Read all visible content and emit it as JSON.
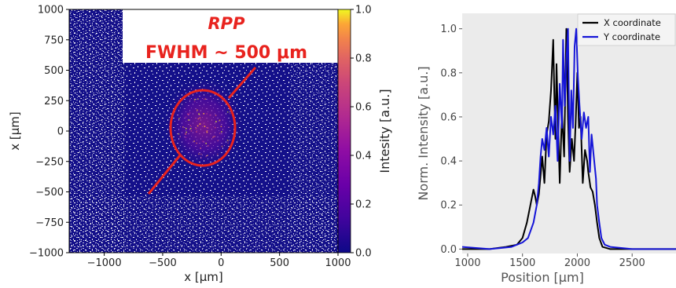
{
  "chart_data": [
    {
      "type": "heatmap",
      "panel": "left",
      "xlabel": "x [μm]",
      "ylabel": "x [μm]",
      "xlim": [
        -1300,
        1000
      ],
      "ylim": [
        -1000,
        1000
      ],
      "x_ticks": [
        -1000,
        -500,
        0,
        500,
        1000
      ],
      "x_tick_labels": [
        "−1000",
        "−500",
        "0",
        "500",
        "1000"
      ],
      "y_ticks": [
        1000,
        750,
        500,
        250,
        0,
        -250,
        -500,
        -750,
        -1000
      ],
      "y_tick_labels": [
        "1000",
        "750",
        "500",
        "250",
        "0",
        "−250",
        "−500",
        "−750",
        "−1000"
      ],
      "colorbar": {
        "label": "Intesity [a.u.]",
        "range": [
          0.0,
          1.0
        ],
        "ticks": [
          0.0,
          0.2,
          0.4,
          0.6,
          0.8,
          1.0
        ],
        "tick_labels": [
          "0.0",
          "0.2",
          "0.4",
          "0.6",
          "0.8",
          "1.0"
        ],
        "colormap": "plasma"
      },
      "annotations": {
        "title": "RPP",
        "subtitle": "FWHM ~ 500 μm",
        "annotation_color": "#e8231e"
      },
      "spot": {
        "center_x": -150,
        "center_y": 50,
        "width": 500,
        "height": 600,
        "peak": 0.6
      }
    },
    {
      "type": "line",
      "panel": "right",
      "xlabel": "Position [μm]",
      "ylabel": "Norm. Intensity [a.u.]",
      "xlim": [
        950,
        2900
      ],
      "ylim": [
        -0.02,
        1.07
      ],
      "x_ticks": [
        1000,
        1500,
        2000,
        2500
      ],
      "y_ticks": [
        0.0,
        0.2,
        0.4,
        0.6,
        0.8,
        1.0
      ],
      "y_tick_labels": [
        "0.0",
        "0.2",
        "0.4",
        "0.6",
        "0.8",
        "1.0"
      ],
      "background": "#ebebeb",
      "legend_position": "top-right",
      "series": [
        {
          "name": "X coordinate",
          "color": "#000000",
          "points": [
            [
              950,
              0.0
            ],
            [
              1200,
              0.0
            ],
            [
              1350,
              0.01
            ],
            [
              1450,
              0.02
            ],
            [
              1500,
              0.05
            ],
            [
              1540,
              0.12
            ],
            [
              1580,
              0.22
            ],
            [
              1600,
              0.27
            ],
            [
              1615,
              0.24
            ],
            [
              1630,
              0.2
            ],
            [
              1650,
              0.25
            ],
            [
              1680,
              0.42
            ],
            [
              1700,
              0.3
            ],
            [
              1720,
              0.52
            ],
            [
              1740,
              0.58
            ],
            [
              1760,
              0.72
            ],
            [
              1780,
              0.95
            ],
            [
              1790,
              0.7
            ],
            [
              1800,
              0.5
            ],
            [
              1810,
              0.84
            ],
            [
              1825,
              0.55
            ],
            [
              1840,
              0.3
            ],
            [
              1860,
              0.62
            ],
            [
              1880,
              0.42
            ],
            [
              1900,
              1.0
            ],
            [
              1915,
              0.6
            ],
            [
              1930,
              0.35
            ],
            [
              1950,
              0.5
            ],
            [
              1970,
              0.4
            ],
            [
              1985,
              0.58
            ],
            [
              2000,
              0.8
            ],
            [
              2015,
              0.55
            ],
            [
              2030,
              0.6
            ],
            [
              2050,
              0.3
            ],
            [
              2070,
              0.45
            ],
            [
              2090,
              0.4
            ],
            [
              2100,
              0.35
            ],
            [
              2120,
              0.28
            ],
            [
              2140,
              0.26
            ],
            [
              2160,
              0.2
            ],
            [
              2180,
              0.12
            ],
            [
              2200,
              0.05
            ],
            [
              2230,
              0.01
            ],
            [
              2300,
              0.0
            ],
            [
              2900,
              0.0
            ]
          ]
        },
        {
          "name": "Y coordinate",
          "color": "#1515d8",
          "points": [
            [
              950,
              0.01
            ],
            [
              1200,
              0.0
            ],
            [
              1400,
              0.01
            ],
            [
              1500,
              0.03
            ],
            [
              1550,
              0.05
            ],
            [
              1600,
              0.12
            ],
            [
              1630,
              0.2
            ],
            [
              1650,
              0.3
            ],
            [
              1665,
              0.42
            ],
            [
              1680,
              0.5
            ],
            [
              1700,
              0.45
            ],
            [
              1720,
              0.55
            ],
            [
              1740,
              0.42
            ],
            [
              1760,
              0.6
            ],
            [
              1780,
              0.52
            ],
            [
              1800,
              0.65
            ],
            [
              1820,
              0.4
            ],
            [
              1840,
              0.75
            ],
            [
              1860,
              0.55
            ],
            [
              1870,
              0.95
            ],
            [
              1885,
              0.65
            ],
            [
              1900,
              0.85
            ],
            [
              1915,
              1.0
            ],
            [
              1930,
              0.4
            ],
            [
              1945,
              0.72
            ],
            [
              1960,
              0.55
            ],
            [
              1975,
              0.92
            ],
            [
              1990,
              1.0
            ],
            [
              2005,
              0.78
            ],
            [
              2020,
              0.65
            ],
            [
              2040,
              0.5
            ],
            [
              2060,
              0.62
            ],
            [
              2080,
              0.55
            ],
            [
              2100,
              0.6
            ],
            [
              2115,
              0.35
            ],
            [
              2130,
              0.52
            ],
            [
              2150,
              0.42
            ],
            [
              2170,
              0.32
            ],
            [
              2180,
              0.2
            ],
            [
              2200,
              0.12
            ],
            [
              2220,
              0.05
            ],
            [
              2250,
              0.02
            ],
            [
              2300,
              0.01
            ],
            [
              2500,
              0.0
            ],
            [
              2900,
              0.0
            ]
          ]
        }
      ]
    }
  ]
}
